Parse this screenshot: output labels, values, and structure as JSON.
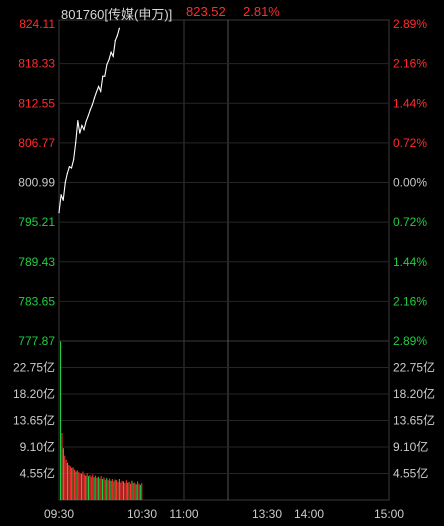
{
  "header": {
    "code_name": "801760[传媒(申万)]",
    "price": "823.52",
    "change_pct": "2.81%"
  },
  "colors": {
    "background": "#000000",
    "frame": "#3a3a3a",
    "price_line": "#ffffff",
    "up": "#ff2d2d",
    "down": "#1fcf3f",
    "neutral": "#c8c8c8",
    "label": "#cccccc"
  },
  "price_axis": {
    "left_labels": [
      "824.11",
      "818.33",
      "812.55",
      "806.77",
      "800.99",
      "795.21",
      "789.43",
      "783.65",
      "777.87"
    ],
    "right_labels": [
      "2.89%",
      "2.16%",
      "1.44%",
      "0.72%",
      "0.00%",
      "0.72%",
      "1.44%",
      "2.16%",
      "2.89%"
    ]
  },
  "volume_axis": {
    "left_labels": [
      "22.75亿",
      "18.20亿",
      "13.65亿",
      "9.10亿",
      "4.55亿"
    ],
    "right_labels": [
      "22.75亿",
      "18.20亿",
      "13.65亿",
      "9.10亿",
      "4.55亿"
    ]
  },
  "time_axis": {
    "labels": [
      "09:30",
      "10:30",
      "11:00",
      "13:30",
      "14:00",
      "15:00"
    ]
  },
  "chart_data": {
    "type": "line",
    "instrument": "801760[传媒(申万)]",
    "price_range": [
      777.87,
      824.11
    ],
    "prev_close": 800.99,
    "volume_unit": "亿",
    "volume_range": [
      0,
      27.3
    ],
    "price_series": [
      {
        "time": "09:30",
        "price": 796.6
      },
      {
        "time": "09:32",
        "price": 799.2
      },
      {
        "time": "09:34",
        "price": 798.4
      },
      {
        "time": "09:36",
        "price": 801.0
      },
      {
        "time": "09:38",
        "price": 802.3
      },
      {
        "time": "09:40",
        "price": 803.3
      },
      {
        "time": "09:42",
        "price": 803.1
      },
      {
        "time": "09:44",
        "price": 804.3
      },
      {
        "time": "09:46",
        "price": 806.8
      },
      {
        "time": "09:48",
        "price": 810.0
      },
      {
        "time": "09:50",
        "price": 808.2
      },
      {
        "time": "09:52",
        "price": 809.3
      },
      {
        "time": "09:54",
        "price": 808.7
      },
      {
        "time": "09:56",
        "price": 809.9
      },
      {
        "time": "09:58",
        "price": 810.7
      },
      {
        "time": "10:00",
        "price": 811.6
      },
      {
        "time": "10:02",
        "price": 812.3
      },
      {
        "time": "10:04",
        "price": 813.3
      },
      {
        "time": "10:06",
        "price": 814.2
      },
      {
        "time": "10:08",
        "price": 815.0
      },
      {
        "time": "10:10",
        "price": 814.3
      },
      {
        "time": "10:12",
        "price": 816.5
      },
      {
        "time": "10:14",
        "price": 816.5
      },
      {
        "time": "10:16",
        "price": 818.2
      },
      {
        "time": "10:18",
        "price": 818.9
      },
      {
        "time": "10:20",
        "price": 820.0
      },
      {
        "time": "10:22",
        "price": 819.4
      },
      {
        "time": "10:24",
        "price": 821.7
      },
      {
        "time": "10:26",
        "price": 822.4
      },
      {
        "time": "10:28",
        "price": 823.5
      }
    ],
    "volume_series": [
      {
        "time": "09:30",
        "value": 27.2,
        "dir": "down"
      },
      {
        "time": "09:31",
        "value": 11.5,
        "dir": "up"
      },
      {
        "time": "09:32",
        "value": 8.9,
        "dir": "down"
      },
      {
        "time": "09:33",
        "value": 7.6,
        "dir": "up"
      },
      {
        "time": "09:34",
        "value": 6.9,
        "dir": "up"
      },
      {
        "time": "09:35",
        "value": 6.4,
        "dir": "down"
      },
      {
        "time": "09:36",
        "value": 6.0,
        "dir": "up"
      },
      {
        "time": "09:37",
        "value": 5.8,
        "dir": "up"
      },
      {
        "time": "09:38",
        "value": 5.5,
        "dir": "down"
      },
      {
        "time": "09:39",
        "value": 5.6,
        "dir": "up"
      },
      {
        "time": "09:40",
        "value": 5.2,
        "dir": "up"
      },
      {
        "time": "09:41",
        "value": 4.9,
        "dir": "down"
      },
      {
        "time": "09:42",
        "value": 5.1,
        "dir": "up"
      },
      {
        "time": "09:43",
        "value": 4.8,
        "dir": "up"
      },
      {
        "time": "09:44",
        "value": 4.6,
        "dir": "up"
      },
      {
        "time": "09:45",
        "value": 4.5,
        "dir": "down"
      },
      {
        "time": "09:46",
        "value": 4.9,
        "dir": "up"
      },
      {
        "time": "09:47",
        "value": 4.4,
        "dir": "up"
      },
      {
        "time": "09:48",
        "value": 4.2,
        "dir": "down"
      },
      {
        "time": "09:49",
        "value": 4.6,
        "dir": "up"
      },
      {
        "time": "09:50",
        "value": 4.1,
        "dir": "down"
      },
      {
        "time": "09:51",
        "value": 4.3,
        "dir": "up"
      },
      {
        "time": "09:52",
        "value": 4.0,
        "dir": "up"
      },
      {
        "time": "09:53",
        "value": 4.4,
        "dir": "up"
      },
      {
        "time": "09:54",
        "value": 3.9,
        "dir": "down"
      },
      {
        "time": "09:55",
        "value": 4.2,
        "dir": "up"
      },
      {
        "time": "09:56",
        "value": 3.8,
        "dir": "up"
      },
      {
        "time": "09:57",
        "value": 4.0,
        "dir": "down"
      },
      {
        "time": "09:58",
        "value": 3.7,
        "dir": "up"
      },
      {
        "time": "09:59",
        "value": 4.1,
        "dir": "up"
      },
      {
        "time": "10:00",
        "value": 3.6,
        "dir": "down"
      },
      {
        "time": "10:01",
        "value": 3.9,
        "dir": "up"
      },
      {
        "time": "10:02",
        "value": 3.5,
        "dir": "up"
      },
      {
        "time": "10:03",
        "value": 3.8,
        "dir": "down"
      },
      {
        "time": "10:04",
        "value": 3.4,
        "dir": "up"
      },
      {
        "time": "10:05",
        "value": 3.7,
        "dir": "up"
      },
      {
        "time": "10:06",
        "value": 3.3,
        "dir": "down"
      },
      {
        "time": "10:07",
        "value": 3.6,
        "dir": "up"
      },
      {
        "time": "10:08",
        "value": 3.2,
        "dir": "up"
      },
      {
        "time": "10:09",
        "value": 3.5,
        "dir": "down"
      },
      {
        "time": "10:10",
        "value": 3.4,
        "dir": "up"
      },
      {
        "time": "10:11",
        "value": 3.1,
        "dir": "up"
      },
      {
        "time": "10:12",
        "value": 3.6,
        "dir": "down"
      },
      {
        "time": "10:13",
        "value": 3.0,
        "dir": "up"
      },
      {
        "time": "10:14",
        "value": 3.3,
        "dir": "up"
      },
      {
        "time": "10:15",
        "value": 3.2,
        "dir": "down"
      },
      {
        "time": "10:16",
        "value": 2.9,
        "dir": "up"
      },
      {
        "time": "10:17",
        "value": 3.4,
        "dir": "up"
      },
      {
        "time": "10:18",
        "value": 3.0,
        "dir": "down"
      },
      {
        "time": "10:19",
        "value": 3.1,
        "dir": "up"
      },
      {
        "time": "10:20",
        "value": 2.8,
        "dir": "up"
      },
      {
        "time": "10:21",
        "value": 3.3,
        "dir": "down"
      },
      {
        "time": "10:22",
        "value": 2.9,
        "dir": "up"
      },
      {
        "time": "10:23",
        "value": 3.0,
        "dir": "up"
      },
      {
        "time": "10:24",
        "value": 2.7,
        "dir": "down"
      },
      {
        "time": "10:25",
        "value": 3.2,
        "dir": "up"
      },
      {
        "time": "10:26",
        "value": 2.8,
        "dir": "up"
      },
      {
        "time": "10:27",
        "value": 2.6,
        "dir": "down"
      },
      {
        "time": "10:28",
        "value": 2.9,
        "dir": "up"
      }
    ]
  }
}
